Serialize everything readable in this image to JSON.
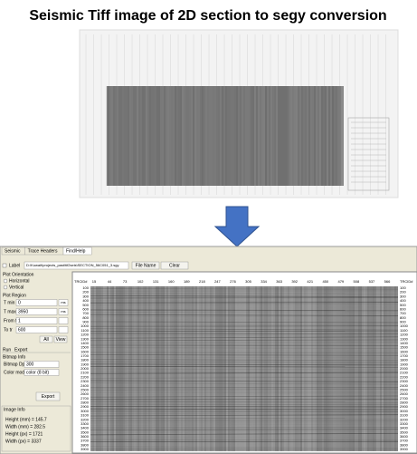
{
  "title": "Seismic Tiff image of 2D section to segy conversion",
  "tabs": [
    "Seismic",
    "Trace Headers",
    "Find/Help"
  ],
  "file": {
    "label": "Label",
    "path": "D:\\Kuwait\\projects_past\\tif2seis\\SECTION_56C051_3.sgy",
    "buttons": [
      "File Name",
      "Clear"
    ]
  },
  "left_panel": {
    "orientation_title": "Plot Orientation",
    "orientations": [
      "Horizontal",
      "Vertical"
    ],
    "region_title": "Plot Region",
    "region": [
      {
        "label": "T min",
        "value": "0",
        "unit": "ms"
      },
      {
        "label": "T max",
        "value": "3950",
        "unit": "ms"
      },
      {
        "label": "From tr",
        "value": "1"
      },
      {
        "label": "To tr",
        "value": "600"
      }
    ],
    "region_buttons": [
      "All",
      "View"
    ],
    "subtabs": [
      "Run",
      "Export"
    ],
    "bitmap_title": "Bitmap Info",
    "bitmap": [
      {
        "label": "Bitmap Dpi:",
        "value": "300"
      },
      {
        "label": "Color mode:",
        "value": "color (8 bit)"
      }
    ],
    "export_button": "Export",
    "image_title": "Image Info",
    "image_info": [
      "Height (mm) = 145.7",
      "Width (mm) = 282.5",
      "Height (px) = 1721",
      "Width (px) = 3337"
    ]
  },
  "display": {
    "trace_header": "TRCID#",
    "traces": [
      15,
      44,
      73,
      102,
      131,
      160,
      189,
      218,
      247,
      276,
      305,
      334,
      363,
      392,
      421,
      450,
      479,
      508,
      537,
      566
    ],
    "times": [
      100,
      200,
      300,
      400,
      500,
      600,
      700,
      800,
      900,
      1000,
      1100,
      1200,
      1300,
      1400,
      1500,
      1600,
      1700,
      1800,
      1900,
      2000,
      2100,
      2200,
      2300,
      2400,
      2500,
      2600,
      2700,
      2800,
      2900,
      3000,
      3100,
      3200,
      3300,
      3400,
      3500,
      3600,
      3700,
      3800,
      3900
    ]
  }
}
